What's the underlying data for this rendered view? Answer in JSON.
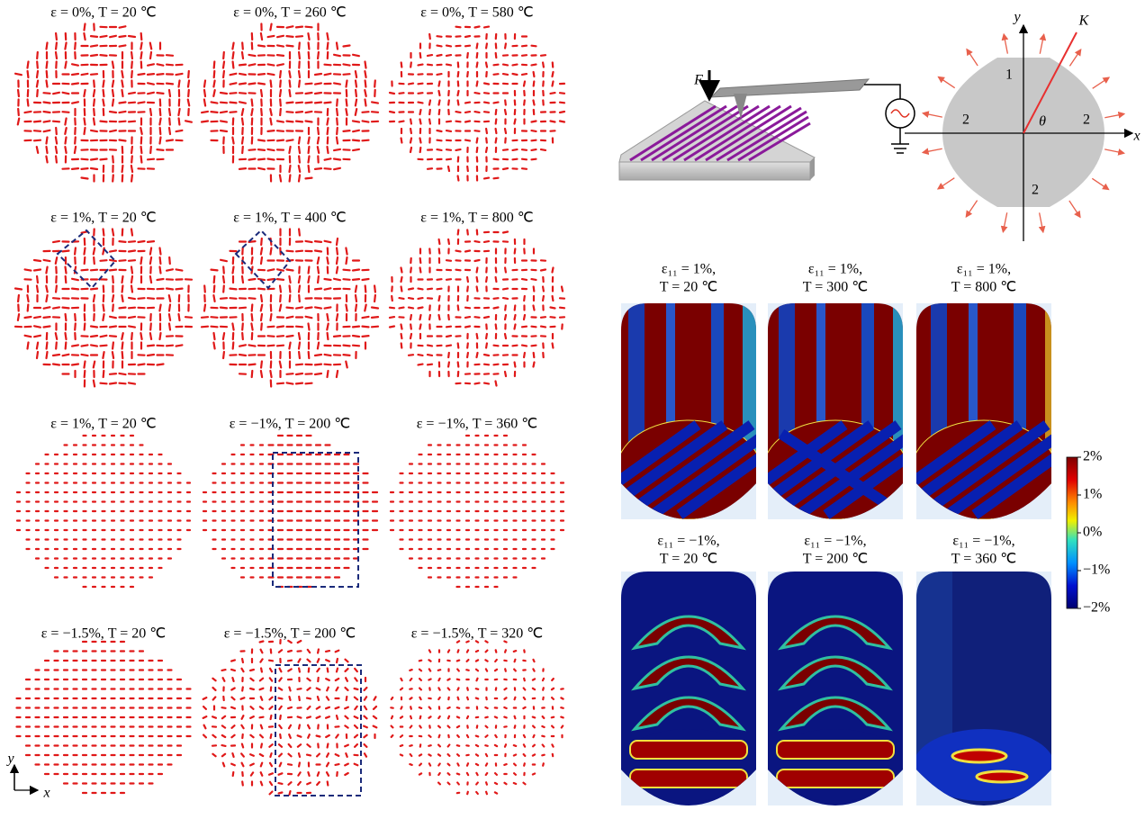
{
  "left_panels": [
    {
      "label": "ε = 0%, T = 20 ℃"
    },
    {
      "label": "ε = 0%, T = 260 ℃"
    },
    {
      "label": "ε = 0%, T = 580 ℃"
    },
    {
      "label": "ε = 1%, T = 20 ℃"
    },
    {
      "label": "ε = 1%, T = 400 ℃"
    },
    {
      "label": "ε = 1%, T = 800 ℃"
    },
    {
      "label": "ε = 1%, T = 20 ℃"
    },
    {
      "label": "ε = −1%, T = 200 ℃"
    },
    {
      "label": "ε = −1%, T = 360 ℃"
    },
    {
      "label": "ε = −1.5%, T = 20 ℃"
    },
    {
      "label": "ε = −1.5%, T = 200 ℃"
    },
    {
      "label": "ε = −1.5%, T = 320 ℃"
    }
  ],
  "axes": {
    "x": "x",
    "y": "y"
  },
  "schematic": {
    "force": "F",
    "axis_x": "x",
    "axis_y": "y",
    "wavevector": "K",
    "angle": "θ",
    "regions": [
      "1",
      "2",
      "2",
      "2"
    ]
  },
  "right_panels": [
    {
      "strain": "ε₁₁ = 1%,",
      "temperature": "T = 20 ℃"
    },
    {
      "strain": "ε₁₁ = 1%,",
      "temperature": "T = 300 ℃"
    },
    {
      "strain": "ε₁₁ = 1%,",
      "temperature": "T = 800 ℃"
    },
    {
      "strain": "ε₁₁ = −1%,",
      "temperature": "T = 20 ℃"
    },
    {
      "strain": "ε₁₁ = −1%,",
      "temperature": "T = 200 ℃"
    },
    {
      "strain": "ε₁₁ = −1%,",
      "temperature": "T = 360 ℃"
    }
  ],
  "colorbar": [
    "2%",
    "1%",
    "0%",
    "−1%",
    "−2%"
  ]
}
